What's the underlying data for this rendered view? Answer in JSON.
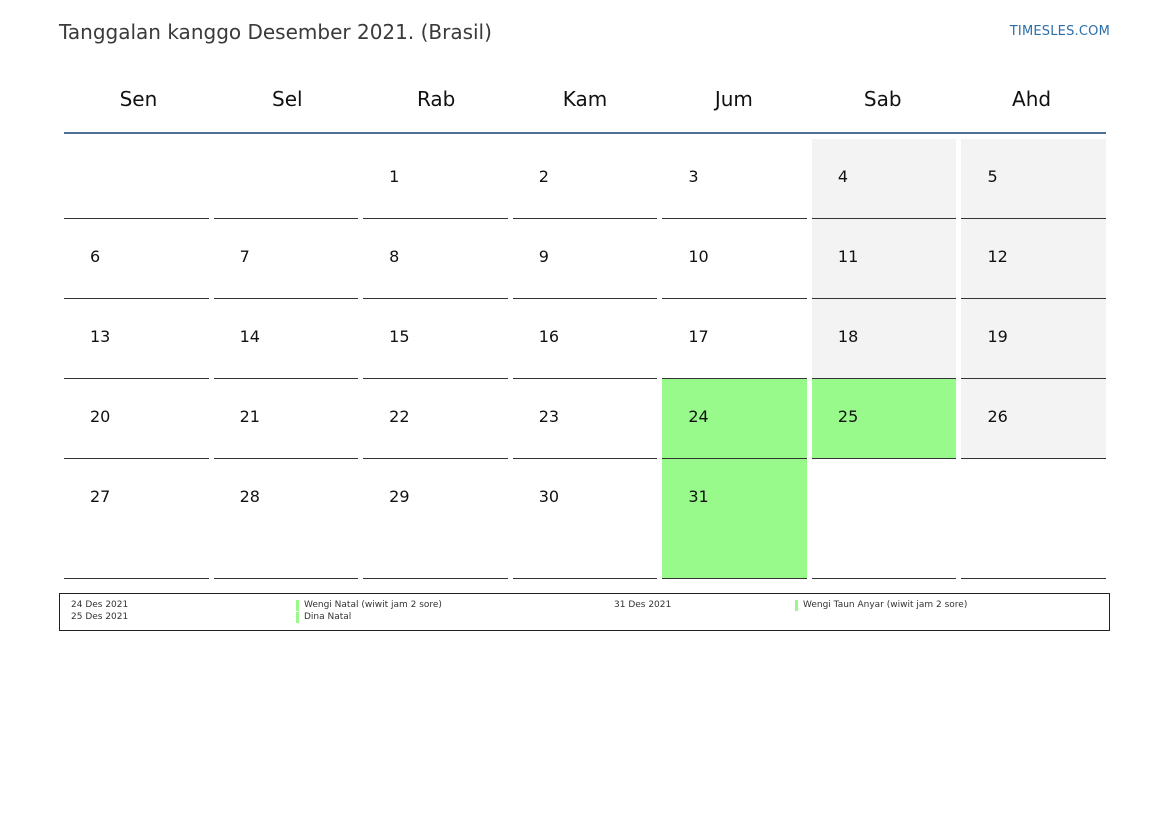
{
  "header": {
    "title": "Tanggalan kanggo Desember 2021. (Brasil)",
    "site": "TIMESLES.COM"
  },
  "colors": {
    "holiday": "#99fa8c",
    "weekend": "#f3f3f3",
    "header_rule": "#4f6f96",
    "link": "#2b6ea8"
  },
  "calendar": {
    "weekdays": [
      "Sen",
      "Sel",
      "Rab",
      "Kam",
      "Jum",
      "Sab",
      "Ahd"
    ],
    "weeks": [
      [
        "",
        "",
        "1",
        "2",
        "3",
        "4",
        "5"
      ],
      [
        "6",
        "7",
        "8",
        "9",
        "10",
        "11",
        "12"
      ],
      [
        "13",
        "14",
        "15",
        "16",
        "17",
        "18",
        "19"
      ],
      [
        "20",
        "21",
        "22",
        "23",
        "24",
        "25",
        "26"
      ],
      [
        "27",
        "28",
        "29",
        "30",
        "31",
        "",
        ""
      ]
    ],
    "holidays": [
      "24",
      "25",
      "31"
    ]
  },
  "legend": {
    "left": [
      {
        "date": "24 Des 2021",
        "name": "Wengi Natal (wiwit jam 2 sore)"
      },
      {
        "date": "25 Des 2021",
        "name": "Dina Natal"
      }
    ],
    "right": [
      {
        "date": "31 Des 2021",
        "name": "Wengi Taun Anyar (wiwit jam 2 sore)"
      }
    ]
  }
}
